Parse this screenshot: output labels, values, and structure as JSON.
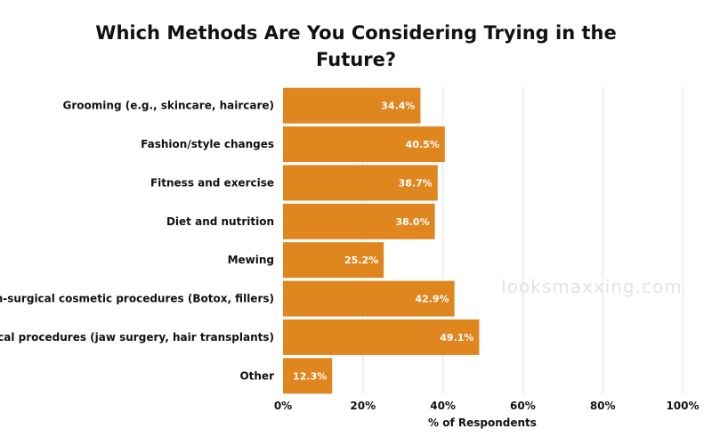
{
  "chart_data": {
    "type": "bar",
    "orientation": "horizontal",
    "title_lines": [
      "Which Methods Are You Considering Trying in the",
      "Future?"
    ],
    "categories": [
      "Grooming (e.g., skincare, haircare)",
      "Fashion/style changes",
      "Fitness and exercise",
      "Diet and nutrition",
      "Mewing",
      "Non-surgical cosmetic procedures (Botox, fillers)",
      "Surgical procedures (jaw surgery, hair transplants)",
      "Other"
    ],
    "values": [
      34.4,
      40.5,
      38.7,
      38.0,
      25.2,
      42.9,
      49.1,
      12.3
    ],
    "data_labels": [
      "34.4%",
      "40.5%",
      "38.7%",
      "38.0%",
      "25.2%",
      "42.9%",
      "49.1%",
      "12.3%"
    ],
    "xlabel": "% of Respondents",
    "ylabel": "",
    "xlim": [
      0,
      100
    ],
    "x_ticks": [
      0,
      20,
      40,
      60,
      80,
      100
    ],
    "x_tick_labels": [
      "0%",
      "20%",
      "40%",
      "60%",
      "80%",
      "100%"
    ],
    "grid": "vertical",
    "bar_color": "#e0861f",
    "watermark": "looksmaxxing.com"
  }
}
